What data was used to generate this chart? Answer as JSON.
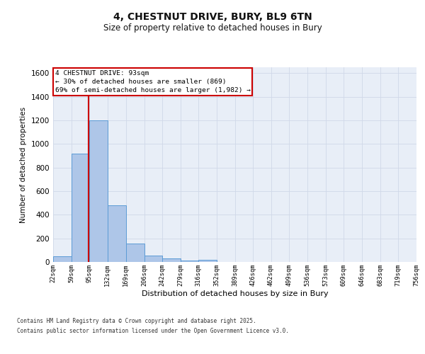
{
  "title_line1": "4, CHESTNUT DRIVE, BURY, BL9 6TN",
  "title_line2": "Size of property relative to detached houses in Bury",
  "xlabel": "Distribution of detached houses by size in Bury",
  "ylabel": "Number of detached properties",
  "bin_labels": [
    "22sqm",
    "59sqm",
    "95sqm",
    "132sqm",
    "169sqm",
    "206sqm",
    "242sqm",
    "279sqm",
    "316sqm",
    "352sqm",
    "389sqm",
    "426sqm",
    "462sqm",
    "499sqm",
    "536sqm",
    "573sqm",
    "609sqm",
    "646sqm",
    "683sqm",
    "719sqm",
    "756sqm"
  ],
  "bar_heights": [
    50,
    920,
    1200,
    480,
    155,
    55,
    30,
    15,
    20,
    0,
    0,
    0,
    0,
    0,
    0,
    0,
    0,
    0,
    0,
    0
  ],
  "bar_color": "#aec6e8",
  "bar_edge_color": "#5b9bd5",
  "property_size": 93,
  "property_label": "4 CHESTNUT DRIVE: 93sqm",
  "annotation_line2": "← 30% of detached houses are smaller (869)",
  "annotation_line3": "69% of semi-detached houses are larger (1,982) →",
  "vline_color": "#cc0000",
  "annotation_box_color": "#cc0000",
  "annotation_bg": "#ffffff",
  "ylim": [
    0,
    1650
  ],
  "yticks": [
    0,
    200,
    400,
    600,
    800,
    1000,
    1200,
    1400,
    1600
  ],
  "bin_edges": [
    22,
    59,
    95,
    132,
    169,
    206,
    242,
    279,
    316,
    352,
    389,
    426,
    462,
    499,
    536,
    573,
    609,
    646,
    683,
    719,
    756
  ],
  "grid_color": "#d0d8e8",
  "bg_color": "#e8eef7",
  "footer_line1": "Contains HM Land Registry data © Crown copyright and database right 2025.",
  "footer_line2": "Contains public sector information licensed under the Open Government Licence v3.0."
}
